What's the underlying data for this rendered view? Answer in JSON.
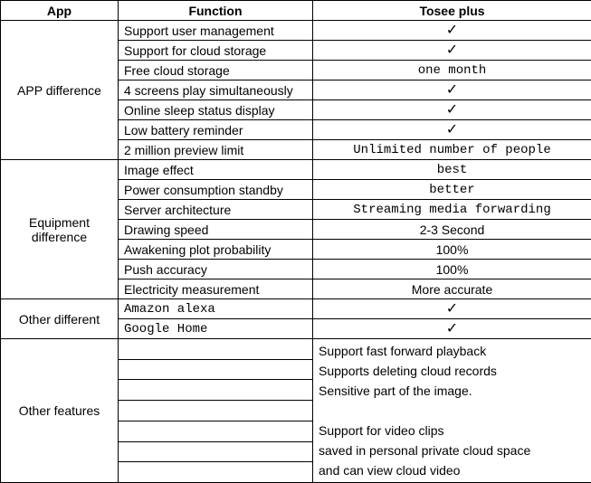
{
  "headers": {
    "app": "App",
    "function": "Function",
    "tosee": "Tosee plus"
  },
  "check_glyph": "✓",
  "sections": {
    "app_diff": {
      "label": "APP difference",
      "rows": [
        {
          "func": "Support user management",
          "val": "__check__"
        },
        {
          "func": " Support for cloud storage",
          "val": "__check__"
        },
        {
          "func": "Free cloud storage",
          "val": "one month",
          "val_mono": true
        },
        {
          "func": "4 screens play simultaneously",
          "val": "__check__"
        },
        {
          "func": " Online sleep status display",
          "val": "__check__"
        },
        {
          "func": " Low battery reminder",
          "val": "__check__"
        },
        {
          "func": " 2 million preview limit",
          "val": "Unlimited number of people",
          "val_mono": true
        }
      ]
    },
    "equip_diff": {
      "label": "Equipment difference",
      "rows": [
        {
          "func": "Image effect",
          "val": "best",
          "val_mono": true
        },
        {
          "func": "Power consumption standby",
          "val": "better",
          "val_mono": true
        },
        {
          "func": "Server architecture",
          "val": "Streaming media forwarding",
          "val_mono": true
        },
        {
          "func": "Drawing speed",
          "val": "2-3 Second"
        },
        {
          "func": "Awakening plot probability",
          "val": "100%"
        },
        {
          "func": " Push accuracy",
          "val": "100%"
        },
        {
          "func": " Electricity measurement",
          "val": "More accurate"
        }
      ]
    },
    "other_diff": {
      "label": "Other different",
      "rows": [
        {
          "func": "Amazon alexa",
          "func_mono": true,
          "val": "__check__"
        },
        {
          "func": "Google Home",
          "func_mono": true,
          "val": "__check__"
        }
      ]
    },
    "other_feat": {
      "label": "Other features",
      "val_lines": [
        "Support fast forward playback",
        "Supports deleting cloud records",
        "Sensitive part of the image.",
        "",
        "Support for video clips",
        "saved in personal private cloud space",
        "and can view cloud video"
      ]
    }
  }
}
